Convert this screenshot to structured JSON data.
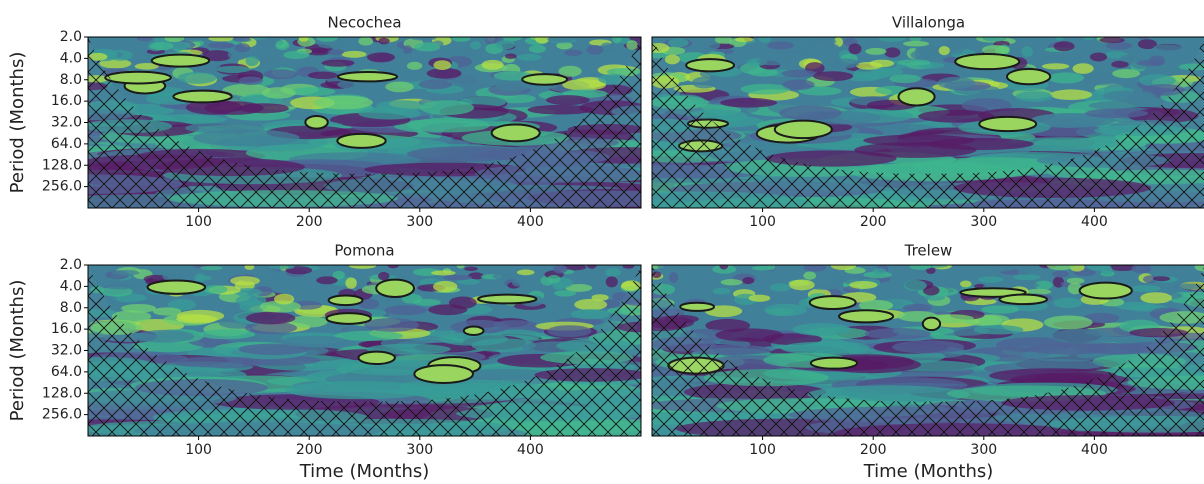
{
  "chart_data": [
    {
      "type": "wavelet",
      "title": "Necochea",
      "ylabel": "Period (Months)",
      "yscale": "log2",
      "hatch": true,
      "xlim": [
        0,
        500
      ],
      "xticks": [
        100,
        200,
        300,
        400
      ],
      "ylim": [
        2,
        512
      ],
      "yticks": [
        {
          "value": 2,
          "label": "2.0"
        },
        {
          "value": 4,
          "label": "4.0"
        },
        {
          "value": 8,
          "label": "8.0"
        },
        {
          "value": 16,
          "label": "16.0"
        },
        {
          "value": 32,
          "label": "32.0"
        },
        {
          "value": 64,
          "label": "64.0"
        },
        {
          "value": 128,
          "label": "128.0"
        },
        {
          "value": 256,
          "label": "256.0"
        }
      ]
    },
    {
      "type": "wavelet",
      "title": "Villalonga",
      "yscale": "log2",
      "hatch": true,
      "xlim": [
        0,
        500
      ],
      "xticks": [
        100,
        200,
        300,
        400
      ],
      "ylim": [
        2,
        512
      ]
    },
    {
      "type": "wavelet",
      "title": "Pomona",
      "ylabel": "Period (Months)",
      "xlabel": "Time (Months)",
      "yscale": "log2",
      "hatch": true,
      "xlim": [
        0,
        500
      ],
      "xticks": [
        100,
        200,
        300,
        400
      ],
      "ylim": [
        2,
        512
      ],
      "yticks": [
        {
          "value": 2,
          "label": "2.0"
        },
        {
          "value": 4,
          "label": "4.0"
        },
        {
          "value": 8,
          "label": "8.0"
        },
        {
          "value": 16,
          "label": "16.0"
        },
        {
          "value": 32,
          "label": "32.0"
        },
        {
          "value": 64,
          "label": "64.0"
        },
        {
          "value": 128,
          "label": "128.0"
        },
        {
          "value": 256,
          "label": "256.0"
        }
      ]
    },
    {
      "type": "wavelet",
      "title": "Trelew",
      "xlabel": "Time (Months)",
      "yscale": "log2",
      "hatch": true,
      "xlim": [
        0,
        500
      ],
      "xticks": [
        100,
        200,
        300,
        400
      ],
      "ylim": [
        2,
        512
      ]
    }
  ]
}
